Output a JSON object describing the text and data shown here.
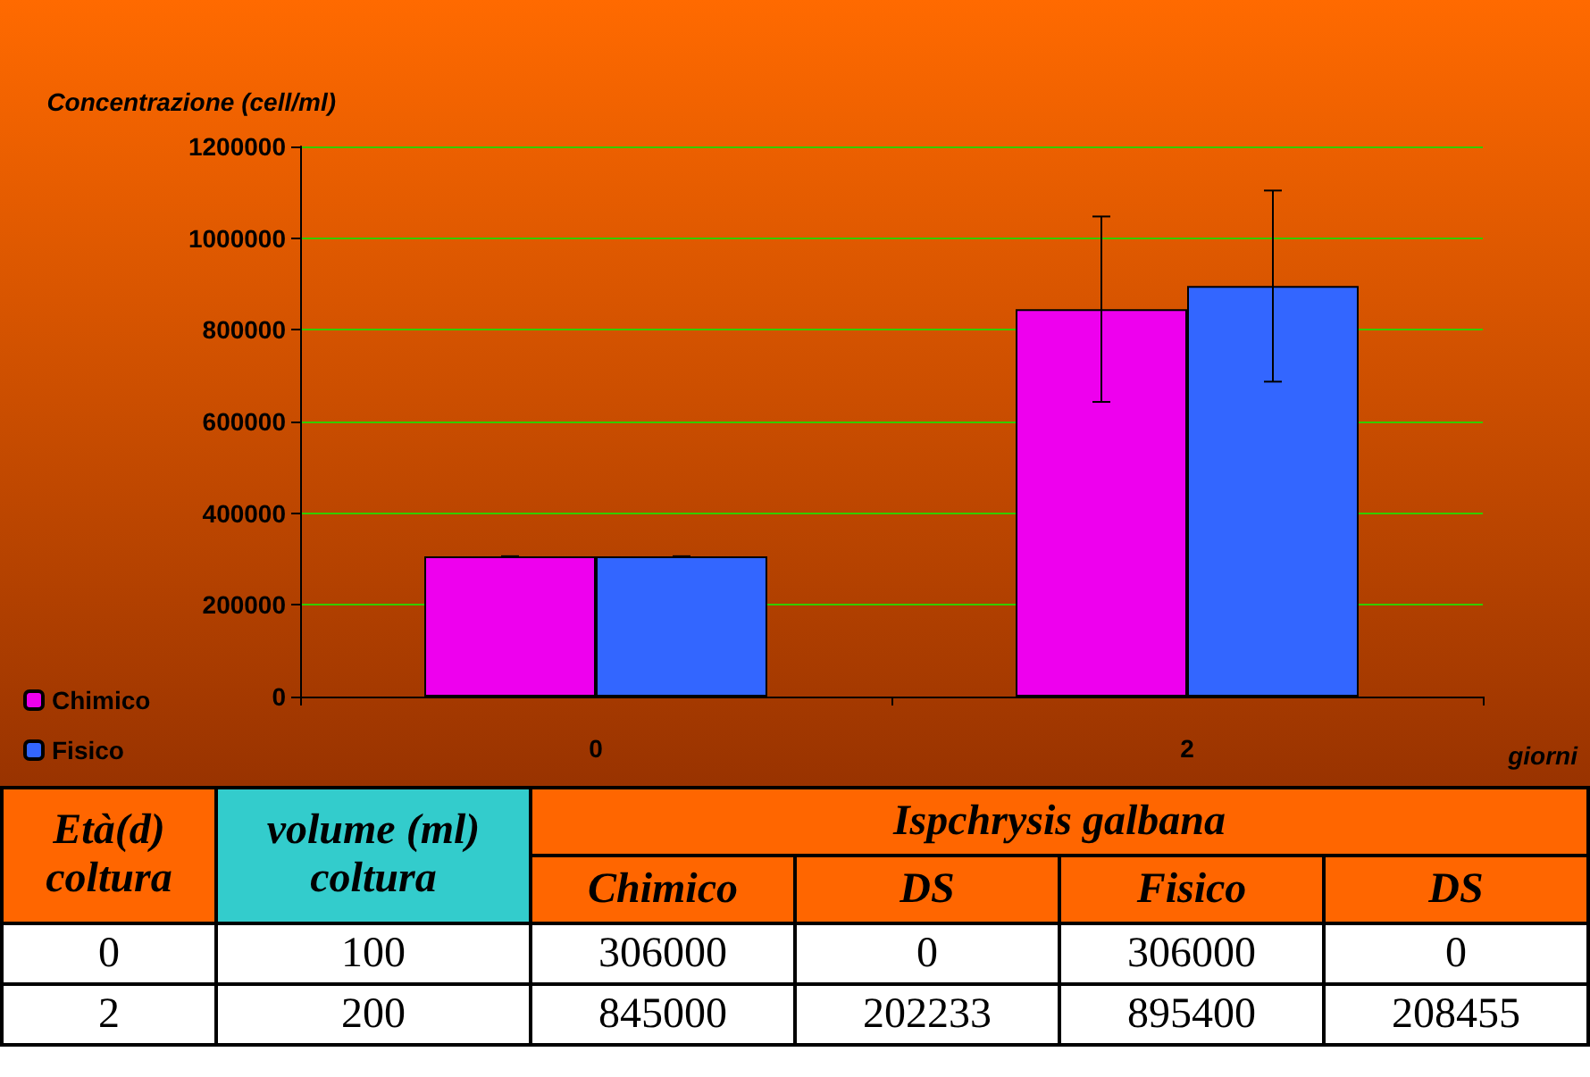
{
  "chart_data": {
    "type": "bar",
    "ylabel": "Concentrazione (cell/ml)",
    "xlabel": "giorni",
    "categories": [
      "0",
      "2"
    ],
    "series": [
      {
        "name": "Chimico",
        "color": "#ee00ee",
        "values": [
          306000,
          845000
        ],
        "errors": [
          0,
          202233
        ]
      },
      {
        "name": "Fisico",
        "color": "#3366ff",
        "values": [
          306000,
          895400
        ],
        "errors": [
          0,
          208455
        ]
      }
    ],
    "ylim": [
      0,
      1200000
    ],
    "yticks": [
      0,
      200000,
      400000,
      600000,
      800000,
      1000000,
      1200000
    ],
    "grid": "y",
    "legend": "bottom left",
    "annotations": [
      "Età(d) coltura",
      "volume (ml) coltura",
      "Ispchrysis galbana",
      "DS",
      "100",
      "306000",
      "0",
      "306000",
      "0",
      "200",
      "845000",
      "202233",
      "895400",
      "208455"
    ]
  }
}
